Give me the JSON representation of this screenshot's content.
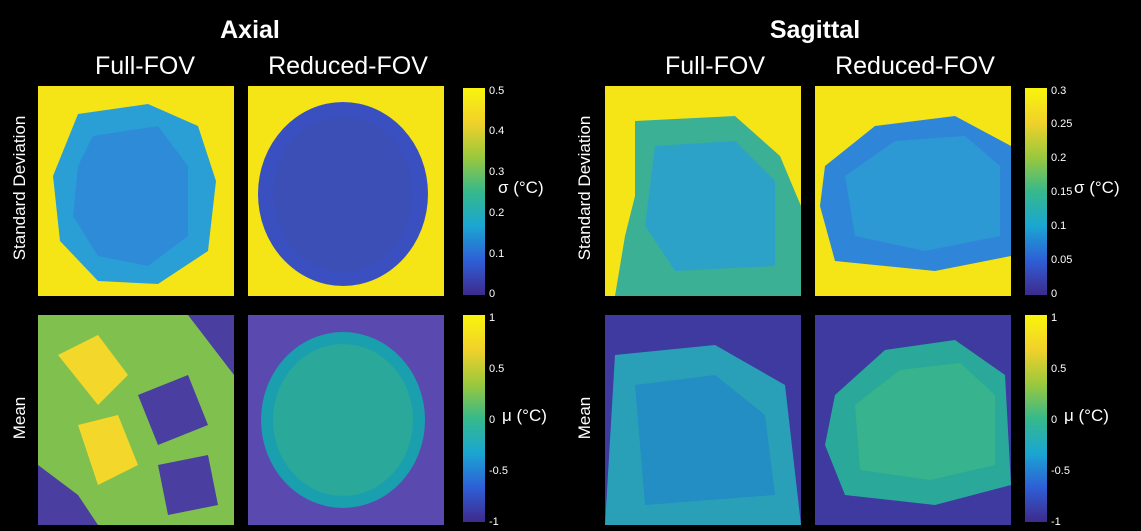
{
  "axial": {
    "title": "Axial",
    "full_fov": "Full-FOV",
    "reduced_fov": "Reduced-FOV"
  },
  "sagittal": {
    "title": "Sagittal",
    "full_fov": "Full-FOV",
    "reduced_fov": "Reduced-FOV"
  },
  "rows": {
    "std_label": "Standard Deviation",
    "mean_label": "Mean"
  },
  "colorbars": {
    "axial_std": {
      "unit": "σ (°C)",
      "ticks": [
        "0.5",
        "0.4",
        "0.3",
        "0.2",
        "0.1",
        "0"
      ]
    },
    "axial_mean": {
      "unit": "μ (°C)",
      "ticks": [
        "1",
        "0.5",
        "0",
        "-0.5",
        "-1"
      ]
    },
    "sagittal_std": {
      "unit": "σ (°C)",
      "ticks": [
        "0.3",
        "0.25",
        "0.2",
        "0.15",
        "0.1",
        "0.05",
        "0"
      ]
    },
    "sagittal_mean": {
      "unit": "μ (°C)",
      "ticks": [
        "1",
        "0.5",
        "0",
        "-0.5",
        "-1"
      ]
    }
  },
  "colormap": {
    "low": "#3e2a8c",
    "mid": "#1aa6d2",
    "high": "#f9f50c"
  }
}
